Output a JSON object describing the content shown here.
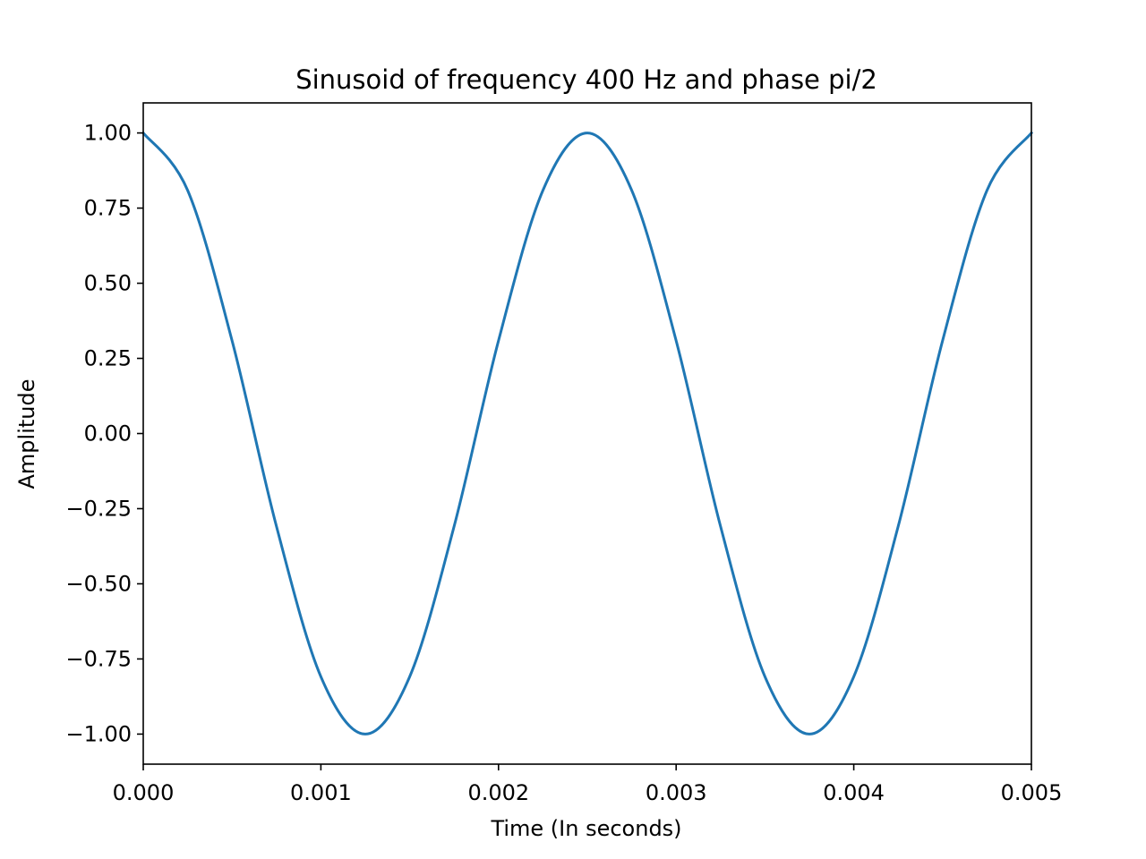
{
  "chart_data": {
    "type": "line",
    "title": "Sinusoid of frequency 400 Hz and phase pi/2",
    "xlabel": "Time (In seconds)",
    "ylabel": "Amplitude",
    "xlim": [
      0,
      0.005
    ],
    "ylim": [
      -1.1,
      1.1
    ],
    "x_ticks": [
      0,
      0.001,
      0.002,
      0.003,
      0.004,
      0.005
    ],
    "x_tick_labels": [
      "0.000",
      "0.001",
      "0.002",
      "0.003",
      "0.004",
      "0.005"
    ],
    "y_ticks": [
      1.0,
      0.75,
      0.5,
      0.25,
      0.0,
      -0.25,
      -0.5,
      -0.75,
      -1.0
    ],
    "y_tick_labels": [
      "1.00",
      "0.75",
      "0.50",
      "0.25",
      "0.00",
      "−0.25",
      "−0.50",
      "−0.75",
      "−1.00"
    ],
    "grid": false,
    "series": [
      {
        "color": "#1f77b4",
        "x": [
          0,
          0.00025,
          0.0005,
          0.00075,
          0.001,
          0.00125,
          0.0015,
          0.00175,
          0.002,
          0.00225,
          0.0025,
          0.00275,
          0.003,
          0.00325,
          0.0035,
          0.00375,
          0.004,
          0.00425,
          0.0045,
          0.00475,
          0.005
        ],
        "y": [
          1.0,
          0.809,
          0.309,
          -0.309,
          -0.809,
          -1.0,
          -0.809,
          -0.309,
          0.309,
          0.809,
          1.0,
          0.809,
          0.309,
          -0.309,
          -0.809,
          -1.0,
          -0.809,
          -0.309,
          0.309,
          0.809,
          1.0
        ]
      }
    ]
  }
}
